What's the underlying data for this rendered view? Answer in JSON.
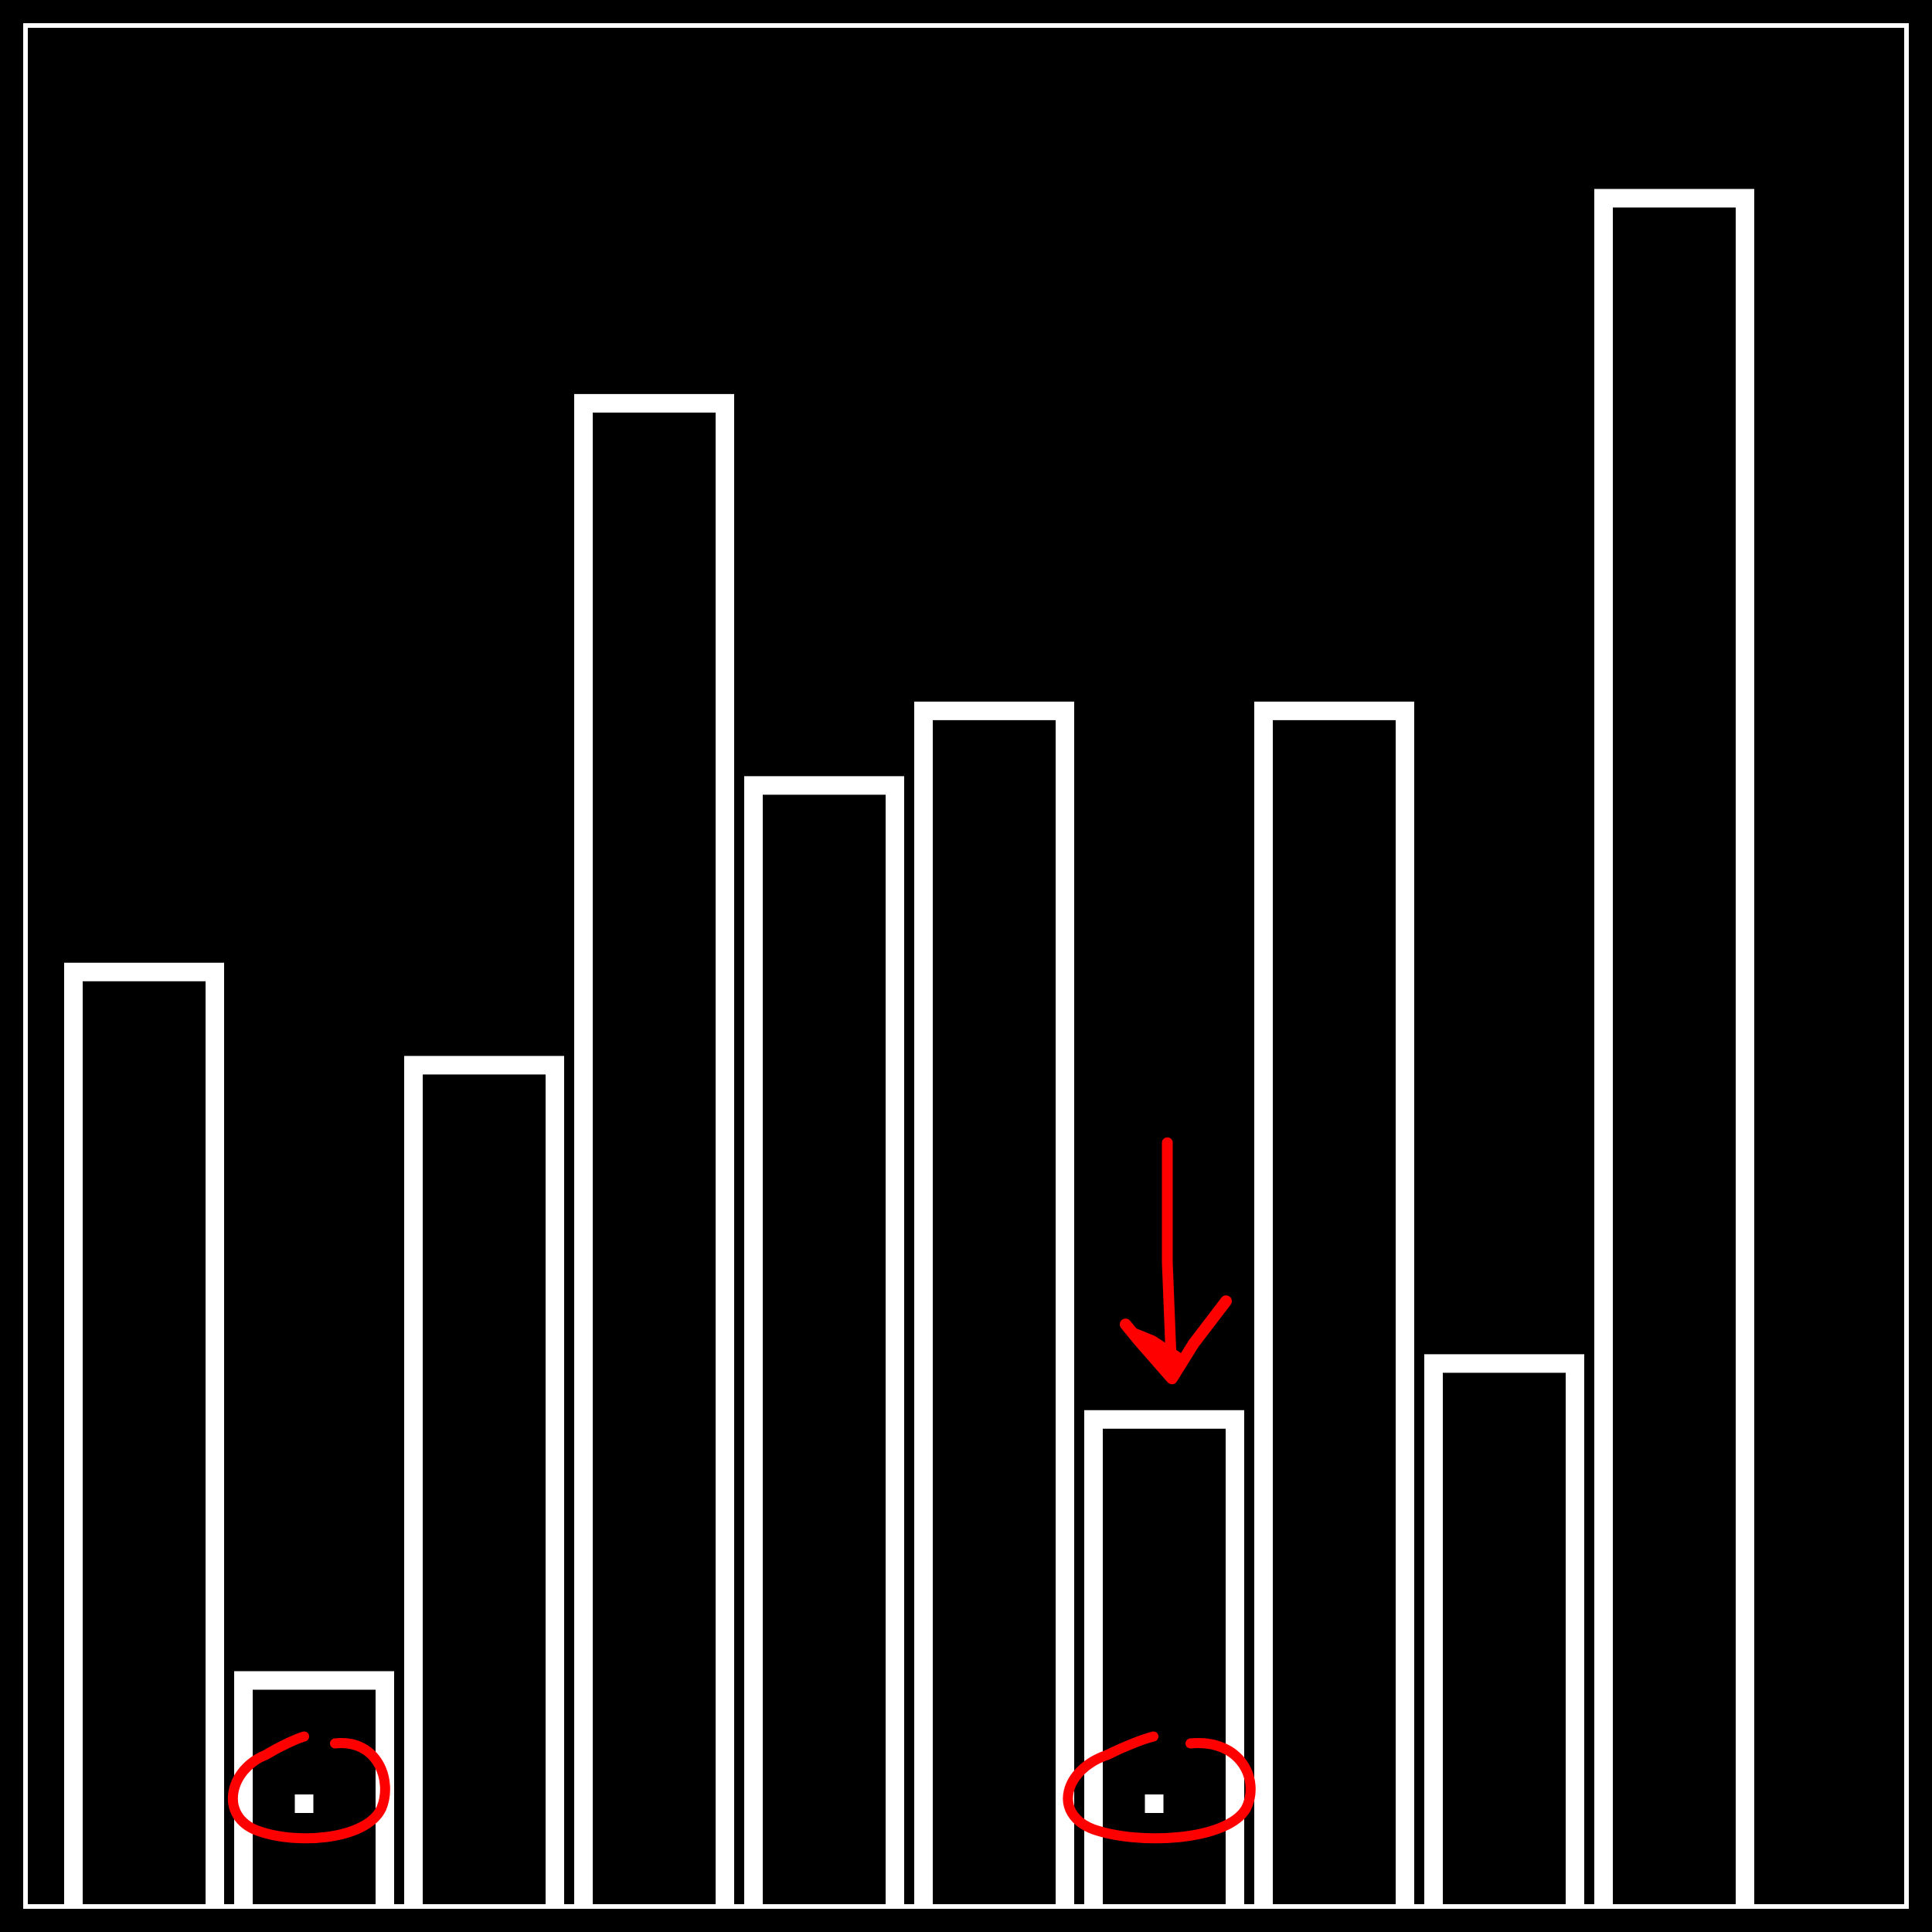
{
  "chart_data": {
    "type": "bar",
    "style": "outlined-bars",
    "colors": {
      "background": "#000000",
      "bar_outline": "#ffffff",
      "annotation": "#ff0000"
    },
    "values": [
      100,
      24,
      90,
      161,
      120,
      128,
      52,
      128,
      58,
      183
    ],
    "ylim": [
      0,
      200
    ],
    "grid": false,
    "legend": "none",
    "highlighted_bars": [
      1,
      6
    ],
    "arrow_target_bar": 6,
    "annotations": [
      {
        "kind": "circle",
        "bar_index": 1,
        "with_dot": true
      },
      {
        "kind": "circle",
        "bar_index": 6,
        "with_dot": true
      },
      {
        "kind": "arrow-down",
        "bar_index": 6
      }
    ]
  }
}
